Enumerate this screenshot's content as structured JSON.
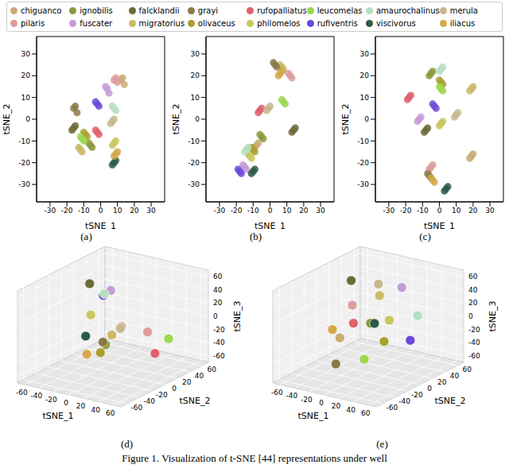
{
  "species": [
    {
      "name": "chiguanco",
      "color": "#c9ab73"
    },
    {
      "name": "pilaris",
      "color": "#dc9c9c"
    },
    {
      "name": "ignobilis",
      "color": "#8c9a3c"
    },
    {
      "name": "fuscater",
      "color": "#c79ad9"
    },
    {
      "name": "falcklandii",
      "color": "#6e6a38"
    },
    {
      "name": "migratorius",
      "color": "#cbb96a"
    },
    {
      "name": "grayi",
      "color": "#8a7a48"
    },
    {
      "name": "olivaceus",
      "color": "#a9a032"
    },
    {
      "name": "rufopalliatus",
      "color": "#e0606e"
    },
    {
      "name": "philomelos",
      "color": "#c9c75e"
    },
    {
      "name": "leucomelas",
      "color": "#9ad84c"
    },
    {
      "name": "rufiventris",
      "color": "#6c4ad8"
    },
    {
      "name": "amaurochalinus",
      "color": "#b6dfc0"
    },
    {
      "name": "viscivorus",
      "color": "#2c5a4a"
    },
    {
      "name": "merula",
      "color": "#c7b78e"
    },
    {
      "name": "iliacus",
      "color": "#d5a848"
    }
  ],
  "chart_data": [
    {
      "type": "scatter",
      "label": "(a)",
      "x_label": "tSNE_1",
      "y_label": "tSNE_2",
      "xlim": [
        -38,
        38
      ],
      "ylim": [
        -38,
        38
      ],
      "xticks": [
        -30,
        -20,
        -10,
        0,
        10,
        20,
        30
      ],
      "yticks": [
        -30,
        -20,
        -10,
        0,
        10,
        20,
        30
      ],
      "series": [
        {
          "name": "chiguanco",
          "x": [
            12,
            14,
            13
          ],
          "y": [
            18,
            16,
            19
          ]
        },
        {
          "name": "pilaris",
          "x": [
            9,
            10,
            8
          ],
          "y": [
            19,
            17,
            18
          ]
        },
        {
          "name": "ignobilis",
          "x": [
            -6,
            -5,
            -7
          ],
          "y": [
            -12,
            -13,
            -11
          ]
        },
        {
          "name": "fuscater",
          "x": [
            4,
            5,
            3
          ],
          "y": [
            14,
            12,
            15
          ]
        },
        {
          "name": "falcklandii",
          "x": [
            -17,
            -15,
            -16
          ],
          "y": [
            -5,
            -3,
            -4
          ]
        },
        {
          "name": "migratorius",
          "x": [
            -12,
            -11,
            -13
          ],
          "y": [
            -14,
            -15,
            -13
          ]
        },
        {
          "name": "grayi",
          "x": [
            -16,
            -14,
            -15
          ],
          "y": [
            5,
            3,
            6
          ]
        },
        {
          "name": "olivaceus",
          "x": [
            -9,
            -8,
            -10
          ],
          "y": [
            -7,
            -8,
            -6
          ]
        },
        {
          "name": "rufopalliatus",
          "x": [
            -2,
            -1,
            -3
          ],
          "y": [
            -6,
            -7,
            -5
          ]
        },
        {
          "name": "philomelos",
          "x": [
            8,
            9,
            7
          ],
          "y": [
            -11,
            -10,
            -12
          ]
        },
        {
          "name": "leucomelas",
          "x": [
            -11,
            -10,
            -12
          ],
          "y": [
            -9,
            -10,
            -8
          ]
        },
        {
          "name": "rufiventris",
          "x": [
            -2,
            -1,
            -3
          ],
          "y": [
            7,
            6,
            8
          ]
        },
        {
          "name": "amaurochalinus",
          "x": [
            8,
            9,
            7
          ],
          "y": [
            5,
            4,
            6
          ]
        },
        {
          "name": "viscivorus",
          "x": [
            8,
            9,
            7
          ],
          "y": [
            -20,
            -19,
            -21
          ]
        },
        {
          "name": "merula",
          "x": [
            7,
            8,
            6
          ],
          "y": [
            -1,
            0,
            -2
          ]
        },
        {
          "name": "iliacus",
          "x": [
            9,
            10,
            8
          ],
          "y": [
            -16,
            -15,
            -17
          ]
        }
      ]
    },
    {
      "type": "scatter",
      "label": "(b)",
      "x_label": "tSNE_1",
      "y_label": "tSNE_2",
      "xlim": [
        -38,
        38
      ],
      "ylim": [
        -38,
        38
      ],
      "xticks": [
        -30,
        -20,
        -10,
        0,
        10,
        20,
        30
      ],
      "yticks": [
        -30,
        -20,
        -10,
        0,
        10,
        20,
        30
      ],
      "series": [
        {
          "name": "chiguanco",
          "x": [
            -8,
            -7,
            -9
          ],
          "y": [
            -12,
            -11,
            -13
          ]
        },
        {
          "name": "pilaris",
          "x": [
            12,
            13,
            11
          ],
          "y": [
            20,
            19,
            21
          ]
        },
        {
          "name": "ignobilis",
          "x": [
            -5,
            -4,
            -6
          ],
          "y": [
            -8,
            -9,
            -7
          ]
        },
        {
          "name": "fuscater",
          "x": [
            -15,
            -14,
            -16
          ],
          "y": [
            -22,
            -23,
            -21
          ]
        },
        {
          "name": "falcklandii",
          "x": [
            14,
            15,
            13
          ],
          "y": [
            -5,
            -4,
            -6
          ]
        },
        {
          "name": "migratorius",
          "x": [
            7,
            8,
            6
          ],
          "y": [
            24,
            23,
            25
          ]
        },
        {
          "name": "grayi",
          "x": [
            3,
            4,
            2
          ],
          "y": [
            25,
            24,
            26
          ]
        },
        {
          "name": "olivaceus",
          "x": [
            -10,
            -9,
            -11
          ],
          "y": [
            -14,
            -15,
            -13
          ]
        },
        {
          "name": "rufopalliatus",
          "x": [
            -6,
            -5,
            -7
          ],
          "y": [
            4,
            5,
            3
          ]
        },
        {
          "name": "philomelos",
          "x": [
            -12,
            -11,
            -13
          ],
          "y": [
            -17,
            -18,
            -16
          ]
        },
        {
          "name": "leucomelas",
          "x": [
            8,
            9,
            7
          ],
          "y": [
            8,
            7,
            9
          ]
        },
        {
          "name": "rufiventris",
          "x": [
            -18,
            -17,
            -19
          ],
          "y": [
            -24,
            -25,
            -23
          ]
        },
        {
          "name": "amaurochalinus",
          "x": [
            -14,
            -13,
            -15
          ],
          "y": [
            -14,
            -13,
            -15
          ]
        },
        {
          "name": "viscivorus",
          "x": [
            -10,
            -9,
            -11
          ],
          "y": [
            -24,
            -23,
            -25
          ]
        },
        {
          "name": "merula",
          "x": [
            -1,
            0,
            -2
          ],
          "y": [
            5,
            6,
            4
          ]
        },
        {
          "name": "iliacus",
          "x": [
            6,
            7,
            5
          ],
          "y": [
            21,
            22,
            20
          ]
        }
      ]
    },
    {
      "type": "scatter",
      "label": "(c)",
      "x_label": "tSNE_1",
      "y_label": "tSNE_2",
      "xlim": [
        -38,
        38
      ],
      "ylim": [
        -38,
        38
      ],
      "xticks": [
        -30,
        -20,
        -10,
        0,
        10,
        20,
        30
      ],
      "yticks": [
        -30,
        -20,
        -10,
        0,
        10,
        20,
        30
      ],
      "series": [
        {
          "name": "chiguanco",
          "x": [
            19,
            20,
            18
          ],
          "y": [
            -17,
            -16,
            -18
          ]
        },
        {
          "name": "pilaris",
          "x": [
            -5,
            -4,
            -6
          ],
          "y": [
            -22,
            -21,
            -23
          ]
        },
        {
          "name": "ignobilis",
          "x": [
            -5,
            -4,
            -6
          ],
          "y": [
            21,
            22,
            20
          ]
        },
        {
          "name": "fuscater",
          "x": [
            -12,
            -11,
            -13
          ],
          "y": [
            0,
            1,
            -1
          ]
        },
        {
          "name": "falcklandii",
          "x": [
            -8,
            -7,
            -9
          ],
          "y": [
            -5,
            -4,
            -6
          ]
        },
        {
          "name": "migratorius",
          "x": [
            19,
            20,
            18
          ],
          "y": [
            14,
            15,
            13
          ]
        },
        {
          "name": "grayi",
          "x": [
            -6,
            -5,
            -7
          ],
          "y": [
            -26,
            -27,
            -25
          ]
        },
        {
          "name": "olivaceus",
          "x": [
            1,
            2,
            0
          ],
          "y": [
            17,
            16,
            18
          ]
        },
        {
          "name": "rufopalliatus",
          "x": [
            -18,
            -17,
            -19
          ],
          "y": [
            10,
            11,
            9
          ]
        },
        {
          "name": "philomelos",
          "x": [
            1,
            2,
            0
          ],
          "y": [
            -2,
            -1,
            -3
          ]
        },
        {
          "name": "leucomelas",
          "x": [
            1,
            2,
            0
          ],
          "y": [
            14,
            13,
            15
          ]
        },
        {
          "name": "rufiventris",
          "x": [
            -3,
            -2,
            -4
          ],
          "y": [
            6,
            5,
            7
          ]
        },
        {
          "name": "amaurochalinus",
          "x": [
            1,
            2,
            0
          ],
          "y": [
            23,
            24,
            22
          ]
        },
        {
          "name": "viscivorus",
          "x": [
            4,
            5,
            3
          ],
          "y": [
            -32,
            -31,
            -33
          ]
        },
        {
          "name": "merula",
          "x": [
            10,
            11,
            9
          ],
          "y": [
            2,
            3,
            1
          ]
        },
        {
          "name": "iliacus",
          "x": [
            -4,
            -3,
            -5
          ],
          "y": [
            -28,
            -29,
            -27
          ]
        }
      ]
    },
    {
      "type": "scatter3d",
      "label": "(d)",
      "x_label": "tSNE_1",
      "y_label": "tSNE_2",
      "z_label": "tSNE_3",
      "xlim": [
        -70,
        70
      ],
      "ylim": [
        -70,
        70
      ],
      "zlim": [
        -70,
        70
      ],
      "xticks": [
        -60,
        -40,
        -20,
        0,
        20,
        40,
        60
      ],
      "yticks": [
        -60,
        -40,
        -20,
        0,
        20,
        40,
        60
      ],
      "zticks": [
        -60,
        -40,
        -20,
        0,
        20,
        40,
        60
      ],
      "series": [
        {
          "name": "chiguanco",
          "x": [
            20
          ],
          "y": [
            -10
          ],
          "z": [
            10
          ]
        },
        {
          "name": "pilaris",
          "x": [
            30
          ],
          "y": [
            20
          ],
          "z": [
            -10
          ]
        },
        {
          "name": "ignobilis",
          "x": [
            -10
          ],
          "y": [
            0
          ],
          "z": [
            -30
          ]
        },
        {
          "name": "fuscater",
          "x": [
            -20
          ],
          "y": [
            20
          ],
          "z": [
            40
          ]
        },
        {
          "name": "falcklandii",
          "x": [
            -40
          ],
          "y": [
            10
          ],
          "z": [
            50
          ]
        },
        {
          "name": "migratorius",
          "x": [
            -10
          ],
          "y": [
            10
          ],
          "z": [
            -20
          ]
        },
        {
          "name": "grayi",
          "x": [
            -5
          ],
          "y": [
            -10
          ],
          "z": [
            -20
          ]
        },
        {
          "name": "olivaceus",
          "x": [
            0
          ],
          "y": [
            -20
          ],
          "z": [
            -30
          ]
        },
        {
          "name": "rufopalliatus",
          "x": [
            40
          ],
          "y": [
            20
          ],
          "z": [
            -40
          ]
        },
        {
          "name": "philomelos",
          "x": [
            -30
          ],
          "y": [
            0
          ],
          "z": [
            10
          ]
        },
        {
          "name": "leucomelas",
          "x": [
            50
          ],
          "y": [
            30
          ],
          "z": [
            -20
          ]
        },
        {
          "name": "rufiventris",
          "x": [
            -30
          ],
          "y": [
            20
          ],
          "z": [
            30
          ]
        },
        {
          "name": "amaurochalinus",
          "x": [
            -20
          ],
          "y": [
            10
          ],
          "z": [
            40
          ]
        },
        {
          "name": "viscivorus",
          "x": [
            -20
          ],
          "y": [
            -20
          ],
          "z": [
            -10
          ]
        },
        {
          "name": "merula",
          "x": [
            10
          ],
          "y": [
            0
          ],
          "z": [
            0
          ]
        },
        {
          "name": "iliacus",
          "x": [
            -10
          ],
          "y": [
            -30
          ],
          "z": [
            -30
          ]
        }
      ]
    },
    {
      "type": "scatter3d",
      "label": "(e)",
      "x_label": "tSNE_1",
      "y_label": "tSNE_2",
      "z_label": "tSNE_3",
      "xlim": [
        -70,
        70
      ],
      "ylim": [
        -70,
        70
      ],
      "zlim": [
        -70,
        70
      ],
      "xticks": [
        -60,
        -40,
        -20,
        0,
        20,
        40,
        60
      ],
      "yticks": [
        -60,
        -40,
        -20,
        0,
        20,
        40,
        60
      ],
      "zticks": [
        -60,
        -40,
        -20,
        0,
        20,
        40,
        60
      ],
      "series": [
        {
          "name": "chiguanco",
          "x": [
            -30
          ],
          "y": [
            -10
          ],
          "z": [
            -20
          ]
        },
        {
          "name": "pilaris",
          "x": [
            -30
          ],
          "y": [
            10
          ],
          "z": [
            20
          ]
        },
        {
          "name": "ignobilis",
          "x": [
            20
          ],
          "y": [
            -20
          ],
          "z": [
            20
          ]
        },
        {
          "name": "fuscater",
          "x": [
            20
          ],
          "y": [
            30
          ],
          "z": [
            50
          ]
        },
        {
          "name": "falcklandii",
          "x": [
            -40
          ],
          "y": [
            20
          ],
          "z": [
            50
          ]
        },
        {
          "name": "migratorius",
          "x": [
            -10
          ],
          "y": [
            30
          ],
          "z": [
            30
          ]
        },
        {
          "name": "grayi",
          "x": [
            -10
          ],
          "y": [
            -40
          ],
          "z": [
            -40
          ]
        },
        {
          "name": "olivaceus",
          "x": [
            30
          ],
          "y": [
            -10
          ],
          "z": [
            -10
          ]
        },
        {
          "name": "rufopalliatus",
          "x": [
            -20
          ],
          "y": [
            0
          ],
          "z": [
            0
          ]
        },
        {
          "name": "philomelos",
          "x": [
            20
          ],
          "y": [
            10
          ],
          "z": [
            10
          ]
        },
        {
          "name": "leucomelas",
          "x": [
            20
          ],
          "y": [
            -30
          ],
          "z": [
            -30
          ]
        },
        {
          "name": "rufiventris",
          "x": [
            40
          ],
          "y": [
            20
          ],
          "z": [
            -20
          ]
        },
        {
          "name": "amaurochalinus",
          "x": [
            50
          ],
          "y": [
            20
          ],
          "z": [
            20
          ]
        },
        {
          "name": "viscivorus",
          "x": [
            0
          ],
          "y": [
            10
          ],
          "z": [
            0
          ]
        },
        {
          "name": "merula",
          "x": [
            -20
          ],
          "y": [
            40
          ],
          "z": [
            40
          ]
        },
        {
          "name": "iliacus",
          "x": [
            -40
          ],
          "y": [
            -10
          ],
          "z": [
            -10
          ]
        }
      ]
    }
  ],
  "caption": "Figure 1.  Visualization of t-SNE [44] representations under well"
}
